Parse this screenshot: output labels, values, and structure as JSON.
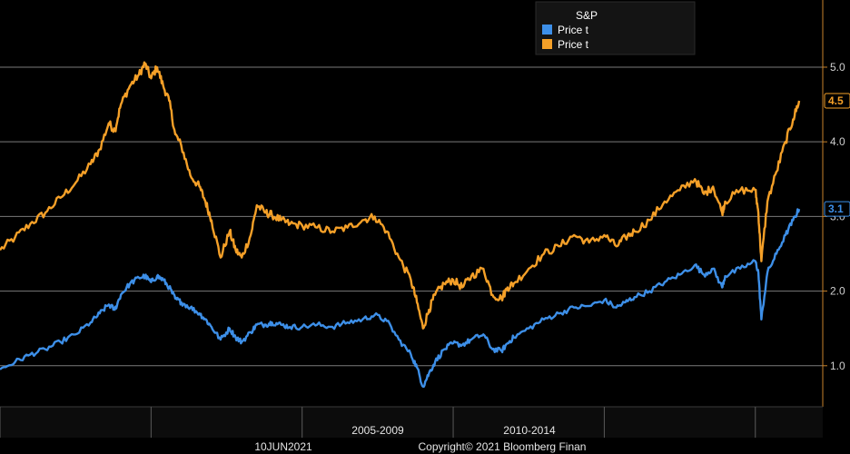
{
  "chart_data": {
    "type": "line",
    "legend": {
      "title": "S&P",
      "placement": "top-right",
      "entries": [
        {
          "label": "Price t",
          "color": "#3d8fe8"
        },
        {
          "label": "Price t",
          "color": "#f5a028"
        }
      ]
    },
    "y_axis": {
      "position": "right",
      "ticks": [
        "1.0",
        "2.0",
        "3.0",
        "4.0",
        "5.0"
      ],
      "tick_values": [
        1.0,
        2.0,
        3.0,
        4.0,
        5.0
      ],
      "ylim": [
        0.45,
        5.9
      ],
      "grid": true
    },
    "x_axis": {
      "period_labels": [
        "2005-2009",
        "2010-2014"
      ],
      "xlim": [
        1995.0,
        2021.45
      ],
      "period_dividers": [
        1995.0,
        2000.0,
        2005.0,
        2010.0,
        2015.0,
        2020.0
      ]
    },
    "series": [
      {
        "color": "#f5a028",
        "last_value_label": "4.5",
        "x": [
          1995.0,
          1995.5,
          1996.0,
          1996.5,
          1997.0,
          1997.5,
          1998.0,
          1998.3,
          1998.6,
          1998.8,
          1999.0,
          1999.3,
          1999.6,
          1999.8,
          2000.0,
          2000.2,
          2000.4,
          2000.6,
          2000.8,
          2001.0,
          2001.3,
          2001.6,
          2001.8,
          2002.0,
          2002.3,
          2002.6,
          2002.8,
          2003.0,
          2003.3,
          2003.5,
          2003.8,
          2004.0,
          2004.3,
          2004.6,
          2005.0,
          2005.5,
          2006.0,
          2006.5,
          2007.0,
          2007.4,
          2007.8,
          2008.2,
          2008.6,
          2008.8,
          2009.0,
          2009.2,
          2009.4,
          2009.7,
          2010.0,
          2010.3,
          2010.6,
          2011.0,
          2011.3,
          2011.6,
          2011.8,
          2012.0,
          2012.5,
          2013.0,
          2013.5,
          2014.0,
          2014.5,
          2015.0,
          2015.4,
          2015.7,
          2016.0,
          2016.5,
          2017.0,
          2017.5,
          2018.0,
          2018.3,
          2018.6,
          2018.9,
          2019.0,
          2019.5,
          2020.0,
          2020.1,
          2020.2,
          2020.4,
          2020.7,
          2021.0,
          2021.25,
          2021.45
        ],
        "y": [
          2.55,
          2.72,
          2.9,
          3.05,
          3.25,
          3.45,
          3.7,
          3.9,
          4.25,
          4.15,
          4.5,
          4.75,
          4.9,
          5.05,
          4.85,
          5.0,
          4.75,
          4.55,
          4.1,
          3.95,
          3.55,
          3.4,
          3.2,
          2.95,
          2.45,
          2.8,
          2.55,
          2.45,
          2.75,
          3.15,
          3.05,
          3.02,
          2.95,
          2.9,
          2.88,
          2.85,
          2.8,
          2.85,
          2.95,
          3.0,
          2.8,
          2.45,
          2.15,
          1.85,
          1.5,
          1.75,
          1.95,
          2.1,
          2.15,
          2.05,
          2.2,
          2.3,
          1.95,
          1.9,
          2.05,
          2.1,
          2.3,
          2.5,
          2.6,
          2.75,
          2.65,
          2.75,
          2.6,
          2.72,
          2.8,
          2.95,
          3.2,
          3.35,
          3.5,
          3.3,
          3.4,
          3.05,
          3.2,
          3.35,
          3.35,
          3.05,
          2.4,
          3.2,
          3.6,
          4.0,
          4.3,
          4.55
        ]
      },
      {
        "color": "#3d8fe8",
        "last_value_label": "3.1",
        "x": [
          1995.0,
          1995.5,
          1996.0,
          1996.5,
          1997.0,
          1997.5,
          1998.0,
          1998.3,
          1998.6,
          1998.8,
          1999.0,
          1999.3,
          1999.6,
          1999.8,
          2000.0,
          2000.2,
          2000.4,
          2000.6,
          2000.8,
          2001.0,
          2001.3,
          2001.6,
          2001.8,
          2002.0,
          2002.3,
          2002.6,
          2002.8,
          2003.0,
          2003.3,
          2003.5,
          2003.8,
          2004.0,
          2004.3,
          2004.6,
          2005.0,
          2005.5,
          2006.0,
          2006.5,
          2007.0,
          2007.4,
          2007.8,
          2008.2,
          2008.6,
          2008.8,
          2009.0,
          2009.2,
          2009.4,
          2009.7,
          2010.0,
          2010.3,
          2010.6,
          2011.0,
          2011.3,
          2011.6,
          2011.8,
          2012.0,
          2012.5,
          2013.0,
          2013.5,
          2014.0,
          2014.5,
          2015.0,
          2015.4,
          2015.7,
          2016.0,
          2016.5,
          2017.0,
          2017.5,
          2018.0,
          2018.3,
          2018.6,
          2018.9,
          2019.0,
          2019.5,
          2020.0,
          2020.1,
          2020.2,
          2020.4,
          2020.7,
          2021.0,
          2021.25,
          2021.45
        ],
        "y": [
          0.95,
          1.05,
          1.15,
          1.22,
          1.32,
          1.42,
          1.58,
          1.7,
          1.82,
          1.75,
          1.95,
          2.1,
          2.18,
          2.2,
          2.12,
          2.2,
          2.15,
          2.05,
          1.9,
          1.85,
          1.78,
          1.7,
          1.62,
          1.52,
          1.35,
          1.5,
          1.38,
          1.32,
          1.45,
          1.55,
          1.55,
          1.58,
          1.55,
          1.52,
          1.52,
          1.55,
          1.52,
          1.58,
          1.62,
          1.68,
          1.6,
          1.35,
          1.15,
          0.98,
          0.72,
          0.9,
          1.05,
          1.22,
          1.3,
          1.28,
          1.35,
          1.42,
          1.22,
          1.2,
          1.3,
          1.38,
          1.5,
          1.62,
          1.7,
          1.78,
          1.8,
          1.88,
          1.78,
          1.85,
          1.92,
          2.0,
          2.12,
          2.22,
          2.35,
          2.22,
          2.3,
          2.05,
          2.2,
          2.3,
          2.4,
          2.25,
          1.62,
          2.25,
          2.5,
          2.75,
          2.95,
          3.1
        ]
      }
    ]
  },
  "footer": {
    "date": "10JUN2021",
    "copyright": "Copyright© 2021 Bloomberg Finan"
  }
}
